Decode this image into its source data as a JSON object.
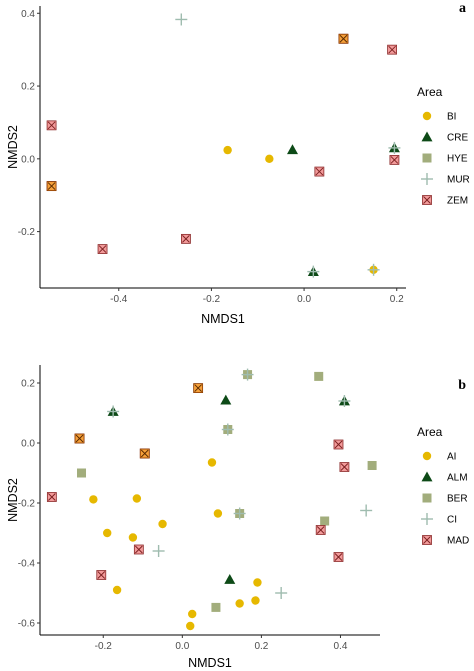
{
  "colors": {
    "BI": "#e6b800",
    "CRE": "#0d4a17",
    "HYE": "#a2ad7c",
    "MUR": "#9fbcaf",
    "ZEM": "#f29a9a",
    "AI": "#e6b800",
    "ALM": "#0d4a17",
    "BER": "#a2ad7c",
    "CI": "#9fbcaf",
    "MAD": "#f29a9a",
    "orange_square": "#f5a03a"
  },
  "chart_data": [
    {
      "type": "scatter",
      "panel_label": "a",
      "xlabel": "NMDS1",
      "ylabel": "NMDS2",
      "xlim": [
        -0.57,
        0.22
      ],
      "ylim": [
        -0.355,
        0.42
      ],
      "x_ticks": [
        -0.4,
        -0.2,
        0.0,
        0.2
      ],
      "x_tick_labels": [
        "-0.4",
        "-0.2",
        "0.0",
        "0.2"
      ],
      "y_ticks": [
        -0.2,
        0.0,
        0.2,
        0.4
      ],
      "y_tick_labels": [
        "-0.2",
        "0.0",
        "0.2",
        "0.4"
      ],
      "grid": false,
      "legend_position": "right",
      "legend_title": "Area",
      "series": [
        {
          "name": "BI",
          "marker": "circle",
          "points": [
            [
              -0.165,
              0.024
            ],
            [
              -0.075,
              0.0
            ],
            [
              0.195,
              -0.003
            ],
            [
              0.15,
              -0.305
            ]
          ]
        },
        {
          "name": "CRE",
          "marker": "triangle",
          "points": [
            [
              -0.025,
              0.025
            ],
            [
              0.195,
              0.03
            ],
            [
              0.02,
              -0.31
            ]
          ]
        },
        {
          "name": "HYE",
          "marker": "square",
          "points": [
            [
              0.195,
              -0.003
            ]
          ]
        },
        {
          "name": "MUR",
          "marker": "plus",
          "points": [
            [
              -0.265,
              0.383
            ],
            [
              0.195,
              0.03
            ],
            [
              0.02,
              -0.31
            ],
            [
              0.15,
              -0.305
            ]
          ]
        },
        {
          "name": "ZEM",
          "marker": "boxcross",
          "points": [
            [
              -0.545,
              0.092
            ],
            [
              -0.545,
              -0.075
            ],
            [
              -0.435,
              -0.248
            ],
            [
              -0.255,
              -0.22
            ],
            [
              0.033,
              -0.035
            ],
            [
              0.19,
              0.3
            ],
            [
              0.085,
              0.33
            ],
            [
              0.195,
              -0.003
            ]
          ]
        }
      ],
      "extra_markers": [
        {
          "marker": "orange_square",
          "points": [
            [
              -0.545,
              -0.075
            ],
            [
              0.085,
              0.33
            ]
          ]
        }
      ]
    },
    {
      "type": "scatter",
      "panel_label": "b",
      "xlabel": "NMDS1",
      "ylabel": "NMDS2",
      "xlim": [
        -0.36,
        0.5
      ],
      "ylim": [
        -0.64,
        0.26
      ],
      "x_ticks": [
        -0.2,
        0.0,
        0.2,
        0.4
      ],
      "x_tick_labels": [
        "-0.2",
        "0.0",
        "0.2",
        "0.4"
      ],
      "y_ticks": [
        -0.6,
        -0.4,
        -0.2,
        0.0,
        0.2
      ],
      "y_tick_labels": [
        "-0.6",
        "-0.4",
        "-0.2",
        "0.0",
        "0.2"
      ],
      "grid": false,
      "legend_position": "right",
      "legend_title": "Area",
      "series": [
        {
          "name": "AI",
          "marker": "circle",
          "points": [
            [
              -0.225,
              -0.188
            ],
            [
              -0.115,
              -0.185
            ],
            [
              -0.19,
              -0.3
            ],
            [
              -0.125,
              -0.315
            ],
            [
              -0.165,
              -0.49
            ],
            [
              0.09,
              -0.235
            ],
            [
              0.185,
              -0.525
            ],
            [
              0.145,
              -0.535
            ],
            [
              0.025,
              -0.57
            ],
            [
              0.02,
              -0.61
            ],
            [
              0.075,
              -0.065
            ],
            [
              -0.05,
              -0.27
            ],
            [
              0.19,
              -0.465
            ]
          ]
        },
        {
          "name": "ALM",
          "marker": "triangle",
          "points": [
            [
              -0.175,
              0.105
            ],
            [
              0.11,
              0.143
            ],
            [
              0.41,
              0.14
            ],
            [
              0.12,
              -0.455
            ]
          ]
        },
        {
          "name": "BER",
          "marker": "square",
          "points": [
            [
              -0.255,
              -0.1
            ],
            [
              0.165,
              0.228
            ],
            [
              0.345,
              0.222
            ],
            [
              0.115,
              0.045
            ],
            [
              0.145,
              -0.235
            ],
            [
              0.36,
              -0.26
            ],
            [
              0.48,
              -0.075
            ],
            [
              0.085,
              -0.548
            ]
          ]
        },
        {
          "name": "CI",
          "marker": "plus",
          "points": [
            [
              0.465,
              -0.225
            ],
            [
              -0.06,
              -0.36
            ],
            [
              0.25,
              -0.5
            ],
            [
              0.165,
              0.228
            ],
            [
              0.115,
              0.045
            ],
            [
              0.145,
              -0.235
            ],
            [
              0.41,
              0.14
            ],
            [
              -0.175,
              0.105
            ]
          ]
        },
        {
          "name": "MAD",
          "marker": "boxcross",
          "points": [
            [
              -0.33,
              -0.18
            ],
            [
              -0.26,
              0.015
            ],
            [
              -0.095,
              -0.035
            ],
            [
              -0.11,
              -0.355
            ],
            [
              -0.205,
              -0.44
            ],
            [
              0.395,
              -0.005
            ],
            [
              0.41,
              -0.08
            ],
            [
              0.35,
              -0.29
            ],
            [
              0.395,
              -0.38
            ]
          ]
        }
      ],
      "extra_markers": [
        {
          "marker": "orange_square",
          "points": [
            [
              0.04,
              0.183
            ],
            [
              -0.26,
              0.015
            ],
            [
              -0.095,
              -0.035
            ]
          ]
        }
      ]
    }
  ]
}
